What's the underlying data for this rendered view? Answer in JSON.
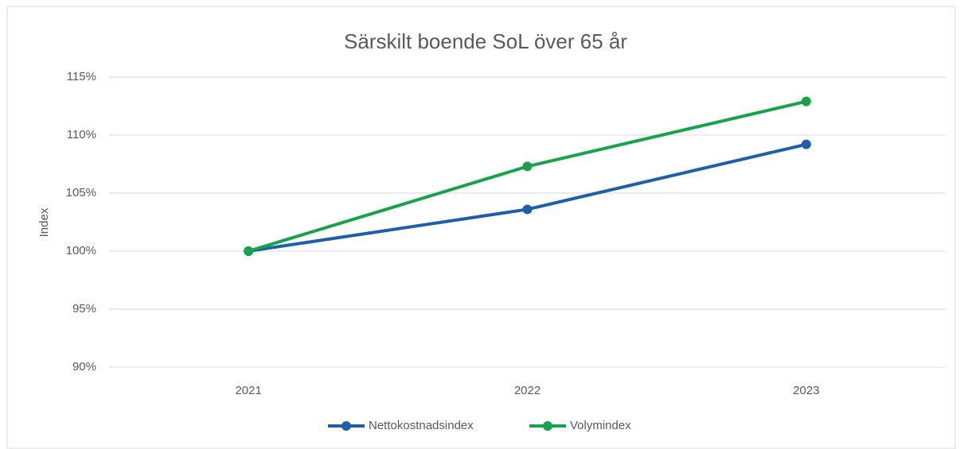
{
  "chart_data": {
    "type": "line",
    "title": "Särskilt boende SoL över 65 år",
    "y_label": "Index",
    "categories": [
      "2021",
      "2022",
      "2023"
    ],
    "series": [
      {
        "name": "Nettokostnadsindex",
        "color": "#1f5ea8",
        "values": [
          100,
          103.6,
          109.2
        ]
      },
      {
        "name": "Volymindex",
        "color": "#18a24b",
        "values": [
          100,
          107.3,
          112.9
        ]
      }
    ],
    "ylim": [
      90,
      115
    ],
    "yticks": [
      {
        "value": 90,
        "label": "90%"
      },
      {
        "value": 95,
        "label": "95%"
      },
      {
        "value": 100,
        "label": "100%"
      },
      {
        "value": 105,
        "label": "105%"
      },
      {
        "value": 110,
        "label": "110%"
      },
      {
        "value": 115,
        "label": "115%"
      }
    ],
    "grid": true,
    "legend": "bottom"
  }
}
